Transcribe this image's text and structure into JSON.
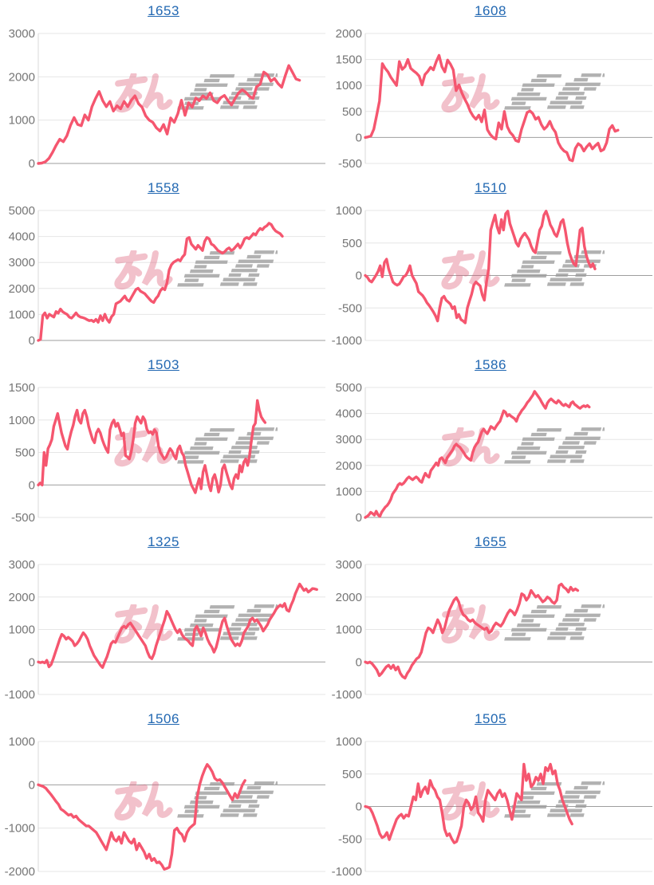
{
  "page": {
    "background": "#ffffff"
  },
  "styles": {
    "line_color": "#f5566f",
    "grid_color": "#e6e6e6",
    "zero_line_color": "#9e9e9e",
    "axis_line_color": "#d9d9d9",
    "tick_label_color": "#757575",
    "title_link_color": "#2268b2",
    "watermark_pink": "#dc5572",
    "watermark_gray": "#9c9c9c"
  },
  "watermark": {
    "pink_text": "みん",
    "gray_text": "レポ (stylized speed-line glyphs)"
  },
  "chart_data": [
    {
      "type": "line",
      "title": "1653",
      "ylim": [
        0,
        3000
      ],
      "yticks": [
        0,
        1000,
        2000,
        3000
      ],
      "x_frac": 0.91,
      "values": [
        0,
        10,
        40,
        120,
        260,
        420,
        560,
        500,
        640,
        880,
        1060,
        900,
        870,
        1120,
        1000,
        1310,
        1500,
        1660,
        1450,
        1310,
        1430,
        1210,
        1330,
        1260,
        1430,
        1310,
        1460,
        1560,
        1380,
        1300,
        1100,
        1000,
        950,
        820,
        750,
        900,
        680,
        1050,
        950,
        1150,
        1460,
        1110,
        1400,
        1300,
        1510,
        1450,
        1560,
        1500,
        1630,
        1450,
        1400,
        1520,
        1570,
        1450,
        1350,
        1500,
        1630,
        1700,
        1640,
        1550,
        1500,
        1770,
        1830,
        2110,
        2050,
        1900,
        1960,
        1840,
        1760,
        2020,
        2260,
        2110,
        1950,
        1920
      ]
    },
    {
      "type": "line",
      "title": "1608",
      "ylim": [
        -500,
        2000
      ],
      "yticks": [
        -500,
        0,
        500,
        1000,
        1500,
        2000
      ],
      "x_frac": 0.88,
      "values": [
        0,
        10,
        30,
        160,
        420,
        700,
        1420,
        1330,
        1260,
        1160,
        1080,
        1000,
        1460,
        1310,
        1360,
        1500,
        1330,
        1280,
        1240,
        1180,
        1010,
        1210,
        1270,
        1350,
        1300,
        1460,
        1580,
        1360,
        1260,
        1490,
        1410,
        1300,
        900,
        1010,
        860,
        740,
        640,
        500,
        410,
        350,
        430,
        300,
        530,
        150,
        60,
        0,
        -30,
        280,
        160,
        500,
        210,
        100,
        40,
        -60,
        -80,
        150,
        310,
        480,
        510,
        460,
        350,
        390,
        250,
        160,
        210,
        310,
        180,
        100,
        -100,
        -200,
        -260,
        -290,
        -430,
        -450,
        -210,
        -120,
        -160,
        -260,
        -180,
        -120,
        -220,
        -160,
        -110,
        -260,
        -230,
        -100,
        160,
        230,
        120,
        140
      ]
    },
    {
      "type": "line",
      "title": "1558",
      "ylim": [
        0,
        5000
      ],
      "yticks": [
        0,
        1000,
        2000,
        3000,
        4000,
        5000
      ],
      "x_frac": 0.85,
      "values": [
        0,
        40,
        950,
        1060,
        860,
        1010,
        950,
        900,
        1110,
        1050,
        1210,
        1100,
        1050,
        1000,
        900,
        860,
        950,
        1060,
        950,
        900,
        880,
        850,
        800,
        760,
        780,
        720,
        810,
        700,
        950,
        760,
        1010,
        810,
        700,
        910,
        1010,
        1410,
        1460,
        1510,
        1610,
        1710,
        1560,
        1510,
        1660,
        1810,
        1960,
        2010,
        1900,
        1850,
        1800,
        1700,
        1600,
        1510,
        1460,
        1610,
        1710,
        1910,
        2010,
        1950,
        2210,
        2710,
        2910,
        3010,
        3060,
        3110,
        3060,
        3210,
        3310,
        3910,
        3960,
        3710,
        3610,
        3510,
        3660,
        3560,
        3460,
        3810,
        3960,
        3910,
        3710,
        3660,
        3560,
        3460,
        3410,
        3360,
        3410,
        3510,
        3560,
        3460,
        3510,
        3610,
        3710,
        3560,
        3710,
        3910,
        3960,
        3910,
        4010,
        4110,
        4060,
        4210,
        4310,
        4260,
        4360,
        4410,
        4510,
        4460,
        4310,
        4210,
        4160,
        4110,
        4010
      ]
    },
    {
      "type": "line",
      "title": "1510",
      "ylim": [
        -1000,
        1000
      ],
      "yticks": [
        -1000,
        -500,
        0,
        500,
        1000
      ],
      "x_frac": 0.8,
      "values": [
        0,
        -30,
        -80,
        -100,
        -50,
        0,
        60,
        150,
        -20,
        200,
        250,
        100,
        0,
        -100,
        -130,
        -150,
        -130,
        -80,
        -20,
        0,
        60,
        150,
        0,
        -60,
        -120,
        -250,
        -280,
        -310,
        -360,
        -420,
        -460,
        -510,
        -560,
        -620,
        -700,
        -500,
        -350,
        -320,
        -380,
        -410,
        -440,
        -510,
        -480,
        -650,
        -600,
        -680,
        -700,
        -730,
        -500,
        -390,
        -290,
        -150,
        -100,
        -130,
        -160,
        -300,
        -380,
        -100,
        100,
        700,
        820,
        930,
        750,
        650,
        860,
        700,
        950,
        990,
        800,
        700,
        600,
        500,
        450,
        560,
        610,
        650,
        600,
        550,
        450,
        380,
        350,
        520,
        700,
        760,
        930,
        990,
        900,
        780,
        720,
        640,
        600,
        700,
        820,
        860,
        700,
        500,
        350,
        250,
        180,
        150,
        420,
        700,
        730,
        450,
        300,
        200,
        130,
        180,
        100
      ]
    },
    {
      "type": "line",
      "title": "1503",
      "ylim": [
        -500,
        1500
      ],
      "yticks": [
        -500,
        0,
        500,
        1000,
        1500
      ],
      "x_frac": 0.79,
      "values": [
        0,
        30,
        0,
        500,
        300,
        560,
        620,
        700,
        900,
        1000,
        1100,
        950,
        800,
        700,
        600,
        550,
        700,
        820,
        920,
        1060,
        1150,
        1000,
        950,
        1100,
        1150,
        1050,
        900,
        800,
        700,
        650,
        800,
        860,
        800,
        700,
        620,
        550,
        500,
        850,
        950,
        1000,
        900,
        950,
        860,
        760,
        800,
        450,
        430,
        400,
        520,
        700,
        950,
        1050,
        1000,
        950,
        1050,
        1000,
        860,
        800,
        820,
        780,
        850,
        800,
        600,
        500,
        450,
        400,
        430,
        500,
        560,
        520,
        450,
        400,
        550,
        600,
        500,
        450,
        300,
        200,
        100,
        0,
        -60,
        -120,
        0,
        100,
        -60,
        200,
        300,
        150,
        0,
        -90,
        100,
        160,
        50,
        -110,
        0,
        250,
        310,
        200,
        100,
        0,
        -60,
        100,
        160,
        100,
        300,
        200,
        350,
        400,
        300,
        460,
        700,
        900,
        950,
        1300,
        1150,
        1050,
        1000,
        960
      ]
    },
    {
      "type": "line",
      "title": "1586",
      "ylim": [
        0,
        5000
      ],
      "yticks": [
        0,
        1000,
        2000,
        3000,
        4000,
        5000
      ],
      "x_frac": 0.78,
      "values": [
        0,
        40,
        100,
        200,
        150,
        90,
        240,
        100,
        40,
        200,
        300,
        400,
        460,
        560,
        700,
        900,
        1000,
        1100,
        1250,
        1310,
        1260,
        1310,
        1400,
        1500,
        1560,
        1500,
        1450,
        1510,
        1560,
        1500,
        1400,
        1350,
        1550,
        1700,
        1600,
        1550,
        1800,
        1900,
        2000,
        2100,
        2000,
        2250,
        2300,
        2200,
        2100,
        2300,
        2400,
        2500,
        2600,
        2750,
        2820,
        2750,
        2700,
        2600,
        2500,
        2380,
        2300,
        2250,
        2200,
        2500,
        2700,
        2820,
        2900,
        3100,
        3300,
        3400,
        3300,
        3220,
        3350,
        3500,
        3450,
        3400,
        3520,
        3620,
        3700,
        3900,
        4100,
        4050,
        3900,
        3960,
        3900,
        3850,
        3800,
        3700,
        3900,
        4000,
        4120,
        4200,
        4300,
        4420,
        4500,
        4600,
        4700,
        4850,
        4750,
        4650,
        4550,
        4420,
        4300,
        4200,
        4400,
        4500,
        4560,
        4500,
        4440,
        4400,
        4500,
        4440,
        4350,
        4300,
        4360,
        4300,
        4250,
        4400,
        4450,
        4350,
        4300,
        4240,
        4200,
        4260,
        4300,
        4260,
        4310,
        4250
      ]
    },
    {
      "type": "line",
      "title": "1325",
      "ylim": [
        -1000,
        3000
      ],
      "yticks": [
        -1000,
        0,
        1000,
        2000,
        3000
      ],
      "x_frac": 0.97,
      "values": [
        0,
        -20,
        0,
        -30,
        50,
        -150,
        -80,
        100,
        300,
        500,
        700,
        850,
        800,
        700,
        760,
        700,
        640,
        500,
        560,
        650,
        780,
        900,
        820,
        700,
        500,
        350,
        200,
        100,
        0,
        -100,
        -170,
        0,
        150,
        350,
        560,
        640,
        600,
        750,
        900,
        1050,
        1100,
        1050,
        1150,
        1200,
        1100,
        1000,
        900,
        800,
        700,
        600,
        500,
        300,
        150,
        100,
        250,
        500,
        700,
        900,
        1100,
        1300,
        1560,
        1450,
        1300,
        1150,
        1000,
        900,
        1000,
        850,
        750,
        700,
        650,
        560,
        500,
        1000,
        1100,
        950,
        800,
        1050,
        900,
        700,
        560,
        460,
        300,
        450,
        700,
        1000,
        1250,
        1350,
        1100,
        900,
        700,
        600,
        500,
        560,
        500,
        650,
        900,
        1000,
        1100,
        1300,
        1350,
        1250,
        1300,
        1200,
        1100,
        950,
        1050,
        1150,
        1300,
        1400,
        1500,
        1620,
        1700,
        1750,
        1700,
        1800,
        1600,
        1560,
        1750,
        1900,
        2100,
        2250,
        2400,
        2300,
        2200,
        2250,
        2150,
        2200,
        2260,
        2250,
        2230
      ]
    },
    {
      "type": "line",
      "title": "1655",
      "ylim": [
        -1000,
        3000
      ],
      "yticks": [
        -1000,
        0,
        1000,
        2000,
        3000
      ],
      "x_frac": 0.74,
      "values": [
        0,
        -30,
        0,
        -60,
        -150,
        -250,
        -420,
        -350,
        -250,
        -150,
        -100,
        -200,
        -100,
        -250,
        -150,
        -350,
        -450,
        -500,
        -350,
        -250,
        -100,
        0,
        100,
        150,
        300,
        600,
        900,
        1050,
        1000,
        900,
        1100,
        1300,
        1150,
        900,
        1050,
        1350,
        1600,
        1750,
        1900,
        1980,
        1850,
        1600,
        1450,
        1400,
        1300,
        1250,
        1300,
        1200,
        1150,
        1100,
        1050,
        1000,
        1050,
        900,
        950,
        1100,
        1200,
        1150,
        1100,
        1200,
        1350,
        1500,
        1600,
        1550,
        1450,
        1600,
        1800,
        2100,
        2050,
        1900,
        2000,
        2200,
        2100,
        2000,
        2050,
        1950,
        1850,
        1900,
        2000,
        1950,
        1850,
        1800,
        1900,
        2350,
        2400,
        2300,
        2250,
        2150,
        2300,
        2200,
        2250,
        2200
      ]
    },
    {
      "type": "line",
      "title": "1506",
      "ylim": [
        -2000,
        1000
      ],
      "yticks": [
        -2000,
        -1000,
        0,
        1000
      ],
      "x_frac": 0.72,
      "values": [
        0,
        -20,
        -40,
        -80,
        -150,
        -220,
        -300,
        -380,
        -450,
        -560,
        -600,
        -650,
        -700,
        -680,
        -750,
        -720,
        -800,
        -850,
        -900,
        -950,
        -950,
        -1000,
        -1050,
        -1100,
        -1200,
        -1300,
        -1400,
        -1500,
        -1300,
        -1100,
        -1250,
        -1300,
        -1200,
        -1350,
        -1100,
        -1200,
        -1300,
        -1350,
        -1250,
        -1500,
        -1350,
        -1450,
        -1550,
        -1700,
        -1600,
        -1750,
        -1700,
        -1800,
        -1780,
        -1850,
        -1950,
        -1930,
        -1900,
        -1600,
        -1050,
        -1000,
        -1100,
        -1150,
        -1300,
        -1100,
        -1000,
        -950,
        -900,
        -300,
        0,
        200,
        350,
        470,
        400,
        300,
        150,
        100,
        120,
        50,
        -50,
        -150,
        -250,
        -350,
        -200,
        -300,
        -150,
        0,
        100
      ]
    },
    {
      "type": "line",
      "title": "1505",
      "ylim": [
        -1000,
        1000
      ],
      "yticks": [
        -1000,
        -500,
        0,
        500,
        1000
      ],
      "x_frac": 0.72,
      "values": [
        0,
        -10,
        -30,
        -100,
        -200,
        -300,
        -420,
        -480,
        -460,
        -400,
        -510,
        -400,
        -300,
        -200,
        -150,
        -120,
        -180,
        -130,
        -150,
        0,
        150,
        100,
        350,
        150,
        250,
        300,
        200,
        400,
        300,
        250,
        150,
        100,
        -100,
        -350,
        -450,
        -420,
        -500,
        -560,
        -540,
        -430,
        -300,
        0,
        100,
        50,
        -50,
        0,
        150,
        -100,
        -150,
        -230,
        100,
        250,
        200,
        150,
        100,
        200,
        250,
        150,
        200,
        100,
        -50,
        -200,
        0,
        200,
        150,
        100,
        650,
        400,
        500,
        300,
        350,
        450,
        400,
        500,
        350,
        600,
        550,
        650,
        500,
        550,
        350,
        250,
        100,
        0,
        -100,
        -200,
        -270
      ]
    }
  ]
}
